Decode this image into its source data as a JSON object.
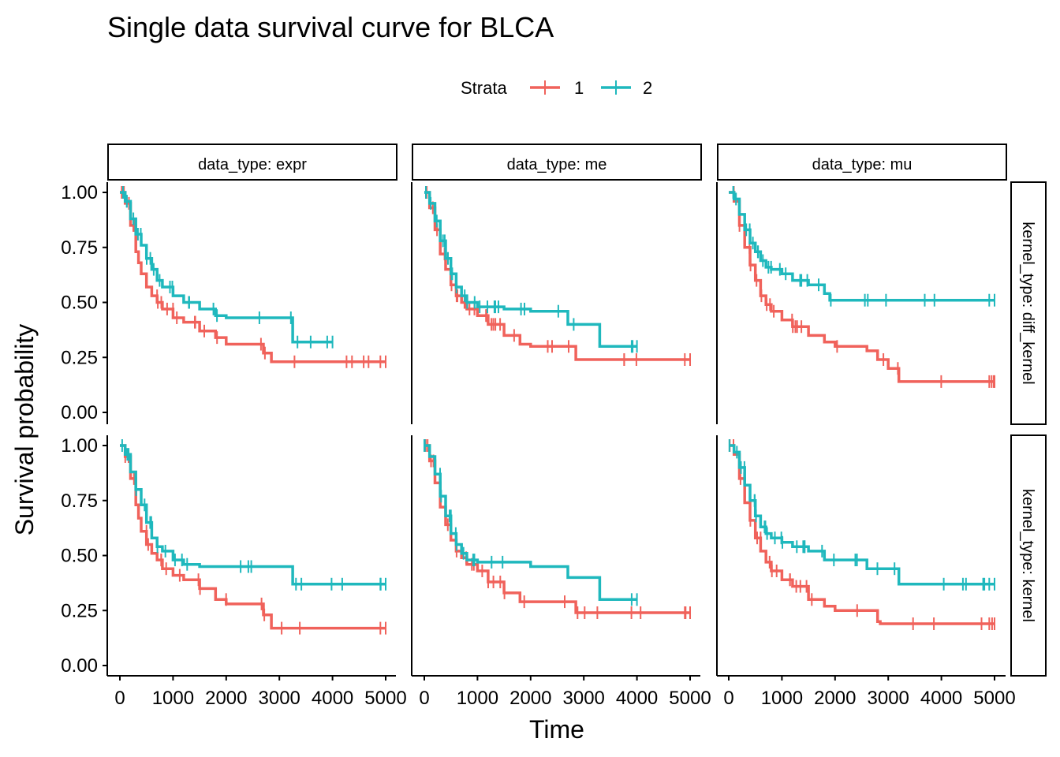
{
  "chart_data": {
    "type": "line",
    "title": "Single data survival curve for BLCA",
    "xlabel": "Time",
    "ylabel": "Survival probability",
    "xlim": [
      0,
      5000
    ],
    "ylim": [
      0,
      1
    ],
    "x_ticks": [
      "0",
      "1000",
      "2000",
      "3000",
      "4000",
      "5000"
    ],
    "y_ticks": [
      "0.00",
      "0.25",
      "0.50",
      "0.75",
      "1.00"
    ],
    "legend": {
      "title": "Strata",
      "position": "top",
      "entries": [
        "1",
        "2"
      ]
    },
    "colors": {
      "1": "#f0625b",
      "2": "#1fb8bd"
    },
    "grid": false,
    "columns": [
      "data_type: expr",
      "data_type: me",
      "data_type: mu"
    ],
    "rows": [
      "kernel_type: diff_kernel",
      "kernel_type: kernel"
    ],
    "panels": [
      {
        "col": 0,
        "row": 0,
        "series": [
          {
            "strata": "1",
            "x": [
              0,
              100,
              200,
              300,
              350,
              400,
              500,
              600,
              700,
              800,
              1000,
              1200,
              1500,
              1800,
              2000,
              2300,
              2600,
              2700,
              2800,
              2850,
              5000
            ],
            "y": [
              1.0,
              0.95,
              0.85,
              0.73,
              0.68,
              0.63,
              0.57,
              0.53,
              0.5,
              0.47,
              0.43,
              0.41,
              0.37,
              0.34,
              0.31,
              0.31,
              0.31,
              0.27,
              0.27,
              0.23,
              0.23
            ]
          },
          {
            "strata": "2",
            "x": [
              0,
              100,
              200,
              300,
              400,
              500,
              600,
              700,
              800,
              1000,
              1200,
              1500,
              1800,
              2000,
              3200,
              3250,
              4000
            ],
            "y": [
              1.0,
              0.96,
              0.88,
              0.81,
              0.76,
              0.7,
              0.65,
              0.6,
              0.57,
              0.53,
              0.5,
              0.47,
              0.44,
              0.43,
              0.43,
              0.32,
              0.32
            ]
          }
        ]
      },
      {
        "col": 1,
        "row": 0,
        "series": [
          {
            "strata": "1",
            "x": [
              0,
              100,
              200,
              300,
              400,
              500,
              600,
              700,
              800,
              1000,
              1200,
              1500,
              1800,
              2000,
              2800,
              2850,
              5000
            ],
            "y": [
              1.0,
              0.93,
              0.83,
              0.72,
              0.65,
              0.58,
              0.53,
              0.5,
              0.47,
              0.44,
              0.4,
              0.35,
              0.31,
              0.3,
              0.3,
              0.24,
              0.24
            ]
          },
          {
            "strata": "2",
            "x": [
              0,
              100,
              200,
              300,
              400,
              500,
              600,
              700,
              800,
              1000,
              1500,
              2000,
              2700,
              3200,
              3300,
              4000
            ],
            "y": [
              1.0,
              0.95,
              0.87,
              0.78,
              0.7,
              0.63,
              0.57,
              0.53,
              0.5,
              0.48,
              0.47,
              0.46,
              0.4,
              0.4,
              0.3,
              0.3
            ]
          }
        ]
      },
      {
        "col": 2,
        "row": 0,
        "series": [
          {
            "strata": "1",
            "x": [
              0,
              100,
              200,
              300,
              400,
              500,
              600,
              700,
              800,
              1000,
              1200,
              1500,
              1800,
              2000,
              2600,
              2800,
              3000,
              3200,
              3300,
              5000
            ],
            "y": [
              1.0,
              0.96,
              0.85,
              0.75,
              0.67,
              0.6,
              0.53,
              0.49,
              0.46,
              0.42,
              0.39,
              0.35,
              0.32,
              0.3,
              0.28,
              0.24,
              0.2,
              0.14,
              0.14,
              0.14
            ]
          },
          {
            "strata": "2",
            "x": [
              0,
              100,
              200,
              300,
              400,
              500,
              600,
              700,
              800,
              1000,
              1200,
              1500,
              1800,
              1900,
              2000,
              5000
            ],
            "y": [
              1.0,
              0.97,
              0.9,
              0.83,
              0.77,
              0.73,
              0.69,
              0.66,
              0.65,
              0.63,
              0.6,
              0.58,
              0.54,
              0.51,
              0.51,
              0.51
            ]
          }
        ]
      },
      {
        "col": 0,
        "row": 1,
        "series": [
          {
            "strata": "1",
            "x": [
              0,
              100,
              200,
              300,
              350,
              400,
              500,
              600,
              700,
              800,
              1000,
              1200,
              1500,
              1800,
              2000,
              2300,
              2600,
              2700,
              2800,
              2850,
              5000
            ],
            "y": [
              1.0,
              0.95,
              0.85,
              0.73,
              0.67,
              0.61,
              0.55,
              0.51,
              0.48,
              0.44,
              0.41,
              0.39,
              0.35,
              0.3,
              0.28,
              0.28,
              0.28,
              0.23,
              0.23,
              0.17,
              0.17
            ]
          },
          {
            "strata": "2",
            "x": [
              0,
              100,
              200,
              300,
              400,
              500,
              600,
              700,
              800,
              1000,
              1200,
              1500,
              1800,
              2000,
              3200,
              3250,
              5000
            ],
            "y": [
              1.0,
              0.96,
              0.88,
              0.8,
              0.73,
              0.65,
              0.58,
              0.54,
              0.52,
              0.48,
              0.46,
              0.45,
              0.45,
              0.45,
              0.45,
              0.37,
              0.37
            ]
          }
        ]
      },
      {
        "col": 1,
        "row": 1,
        "series": [
          {
            "strata": "1",
            "x": [
              0,
              100,
              200,
              300,
              400,
              500,
              600,
              700,
              800,
              1000,
              1200,
              1500,
              1800,
              2000,
              2800,
              2850,
              5000
            ],
            "y": [
              1.0,
              0.93,
              0.83,
              0.72,
              0.64,
              0.57,
              0.52,
              0.49,
              0.46,
              0.43,
              0.38,
              0.33,
              0.29,
              0.29,
              0.29,
              0.24,
              0.24
            ]
          },
          {
            "strata": "2",
            "x": [
              0,
              100,
              200,
              300,
              400,
              500,
              600,
              700,
              800,
              1000,
              1500,
              2000,
              2700,
              3200,
              3300,
              4000
            ],
            "y": [
              1.0,
              0.95,
              0.87,
              0.77,
              0.68,
              0.6,
              0.55,
              0.51,
              0.48,
              0.47,
              0.47,
              0.45,
              0.4,
              0.4,
              0.3,
              0.3
            ]
          }
        ]
      },
      {
        "col": 2,
        "row": 1,
        "series": [
          {
            "strata": "1",
            "x": [
              0,
              100,
              200,
              300,
              400,
              500,
              600,
              700,
              800,
              1000,
              1200,
              1500,
              1800,
              2000,
              2600,
              2800,
              2850,
              5000
            ],
            "y": [
              1.0,
              0.96,
              0.85,
              0.74,
              0.66,
              0.58,
              0.52,
              0.47,
              0.43,
              0.39,
              0.36,
              0.3,
              0.27,
              0.25,
              0.25,
              0.2,
              0.19,
              0.19
            ]
          },
          {
            "strata": "2",
            "x": [
              0,
              100,
              200,
              300,
              400,
              500,
              600,
              700,
              800,
              1000,
              1200,
              1500,
              1800,
              2000,
              2600,
              3100,
              3200,
              5000
            ],
            "y": [
              1.0,
              0.97,
              0.9,
              0.82,
              0.75,
              0.68,
              0.63,
              0.6,
              0.58,
              0.56,
              0.54,
              0.52,
              0.48,
              0.48,
              0.44,
              0.44,
              0.37,
              0.37
            ]
          }
        ]
      }
    ]
  }
}
